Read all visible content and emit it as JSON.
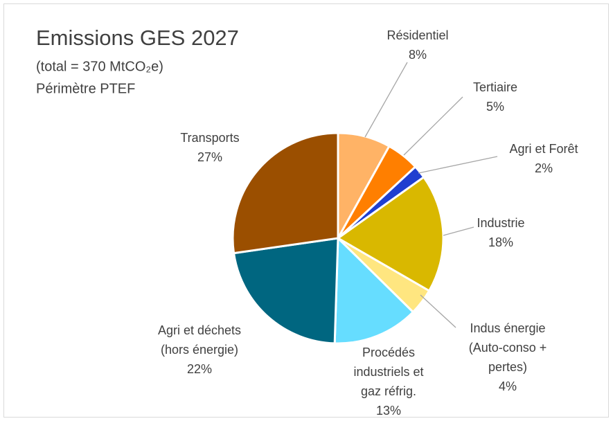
{
  "chart_data": {
    "type": "pie",
    "title": "Emissions GES 2027",
    "subtitle": [
      "(total = 370 MtCO₂e)",
      "Périmètre PTEF"
    ],
    "categories": [
      [
        "Résidentiel"
      ],
      [
        "Tertiaire"
      ],
      [
        "Agri et Forêt"
      ],
      [
        "Industrie"
      ],
      [
        "Indus énergie",
        "(Auto-conso +",
        "pertes)"
      ],
      [
        "Procédés",
        "industriels et",
        "gaz réfrig."
      ],
      [
        "Agri et déchets",
        "(hors énergie)"
      ],
      [
        "Transports"
      ]
    ],
    "values": [
      8,
      5,
      2,
      18,
      4,
      13,
      22,
      27
    ],
    "value_labels": [
      "8%",
      "5%",
      "2%",
      "18%",
      "4%",
      "13%",
      "22%",
      "27%"
    ],
    "colors": [
      "#ffb366",
      "#ff7f00",
      "#1f3fd0",
      "#d9b800",
      "#ffe680",
      "#66ddff",
      "#006680",
      "#9b4f00"
    ]
  }
}
